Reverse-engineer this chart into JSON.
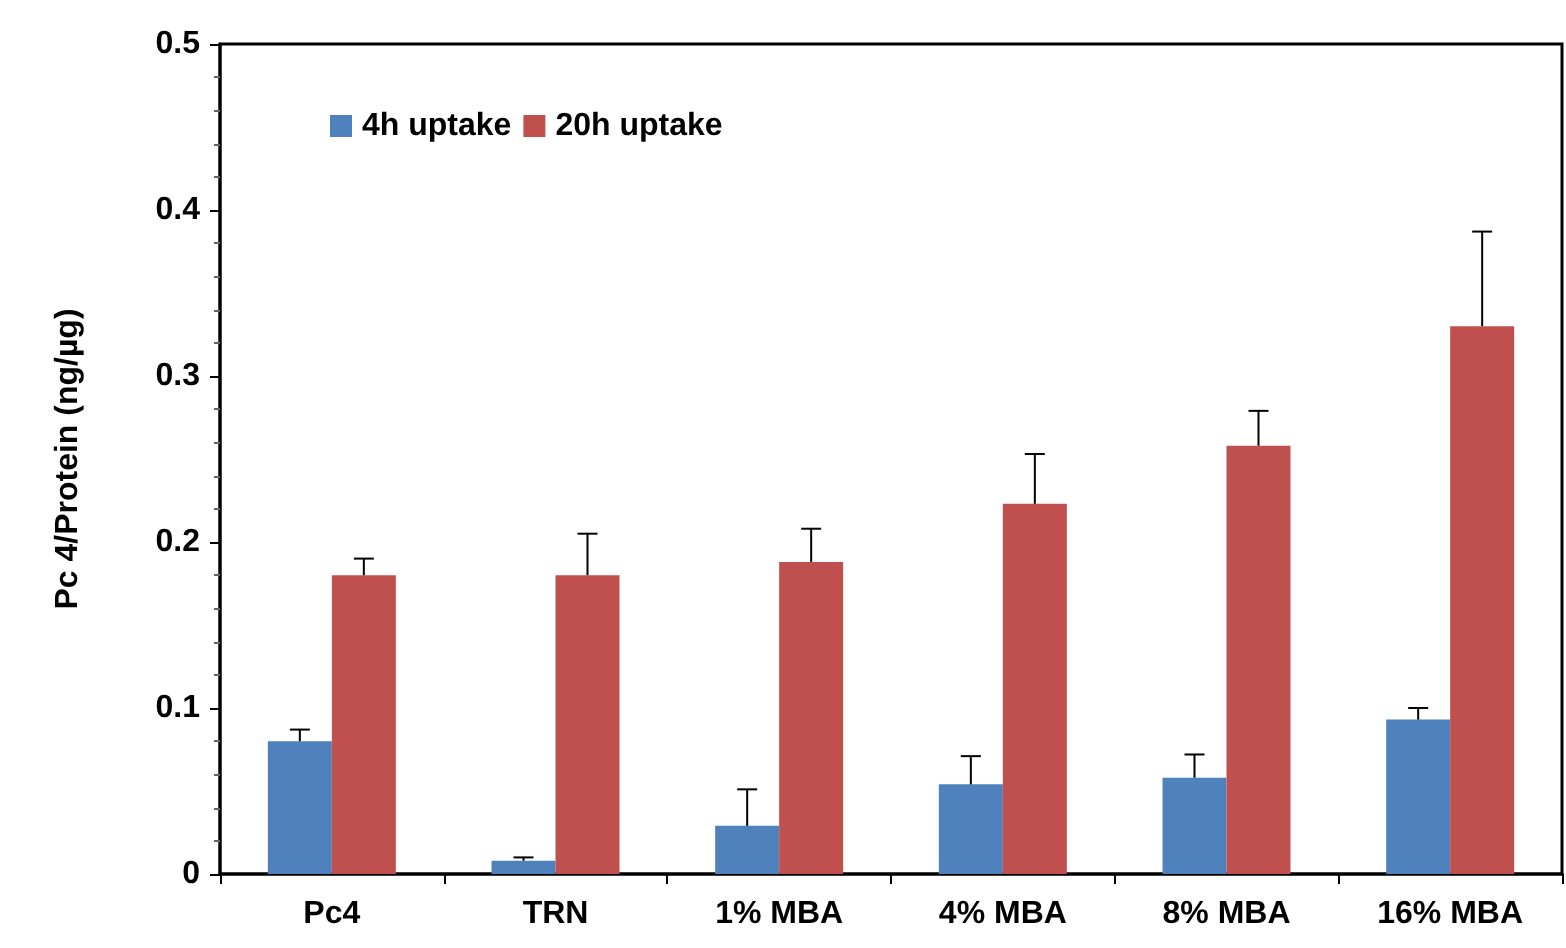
{
  "chart_data": {
    "type": "bar",
    "ylabel": "Pc 4/Protein (ng/µg)",
    "categories": [
      "Pc4",
      "TRN",
      "1% MBA",
      "4% MBA",
      "8% MBA",
      "16% MBA"
    ],
    "series": [
      {
        "name": "4h uptake",
        "color": "#4f81bd",
        "values": [
          0.08,
          0.008,
          0.029,
          0.054,
          0.058,
          0.093
        ],
        "errors": [
          [
            0.08,
            0.087
          ],
          [
            0.008,
            0.01
          ],
          [
            0.029,
            0.051
          ],
          [
            0.054,
            0.071
          ],
          [
            0.058,
            0.072
          ],
          [
            0.093,
            0.1
          ]
        ]
      },
      {
        "name": "20h uptake",
        "color": "#c0504d",
        "values": [
          0.18,
          0.18,
          0.188,
          0.223,
          0.258,
          0.33
        ],
        "errors": [
          [
            0.18,
            0.19
          ],
          [
            0.18,
            0.205
          ],
          [
            0.188,
            0.208
          ],
          [
            0.223,
            0.253
          ],
          [
            0.258,
            0.279
          ],
          [
            0.33,
            0.387
          ]
        ]
      }
    ],
    "ylim": [
      0,
      0.5
    ],
    "yticks": [
      0,
      0.1,
      0.2,
      0.3,
      0.4,
      0.5
    ],
    "grid": false,
    "legend": "top left"
  }
}
